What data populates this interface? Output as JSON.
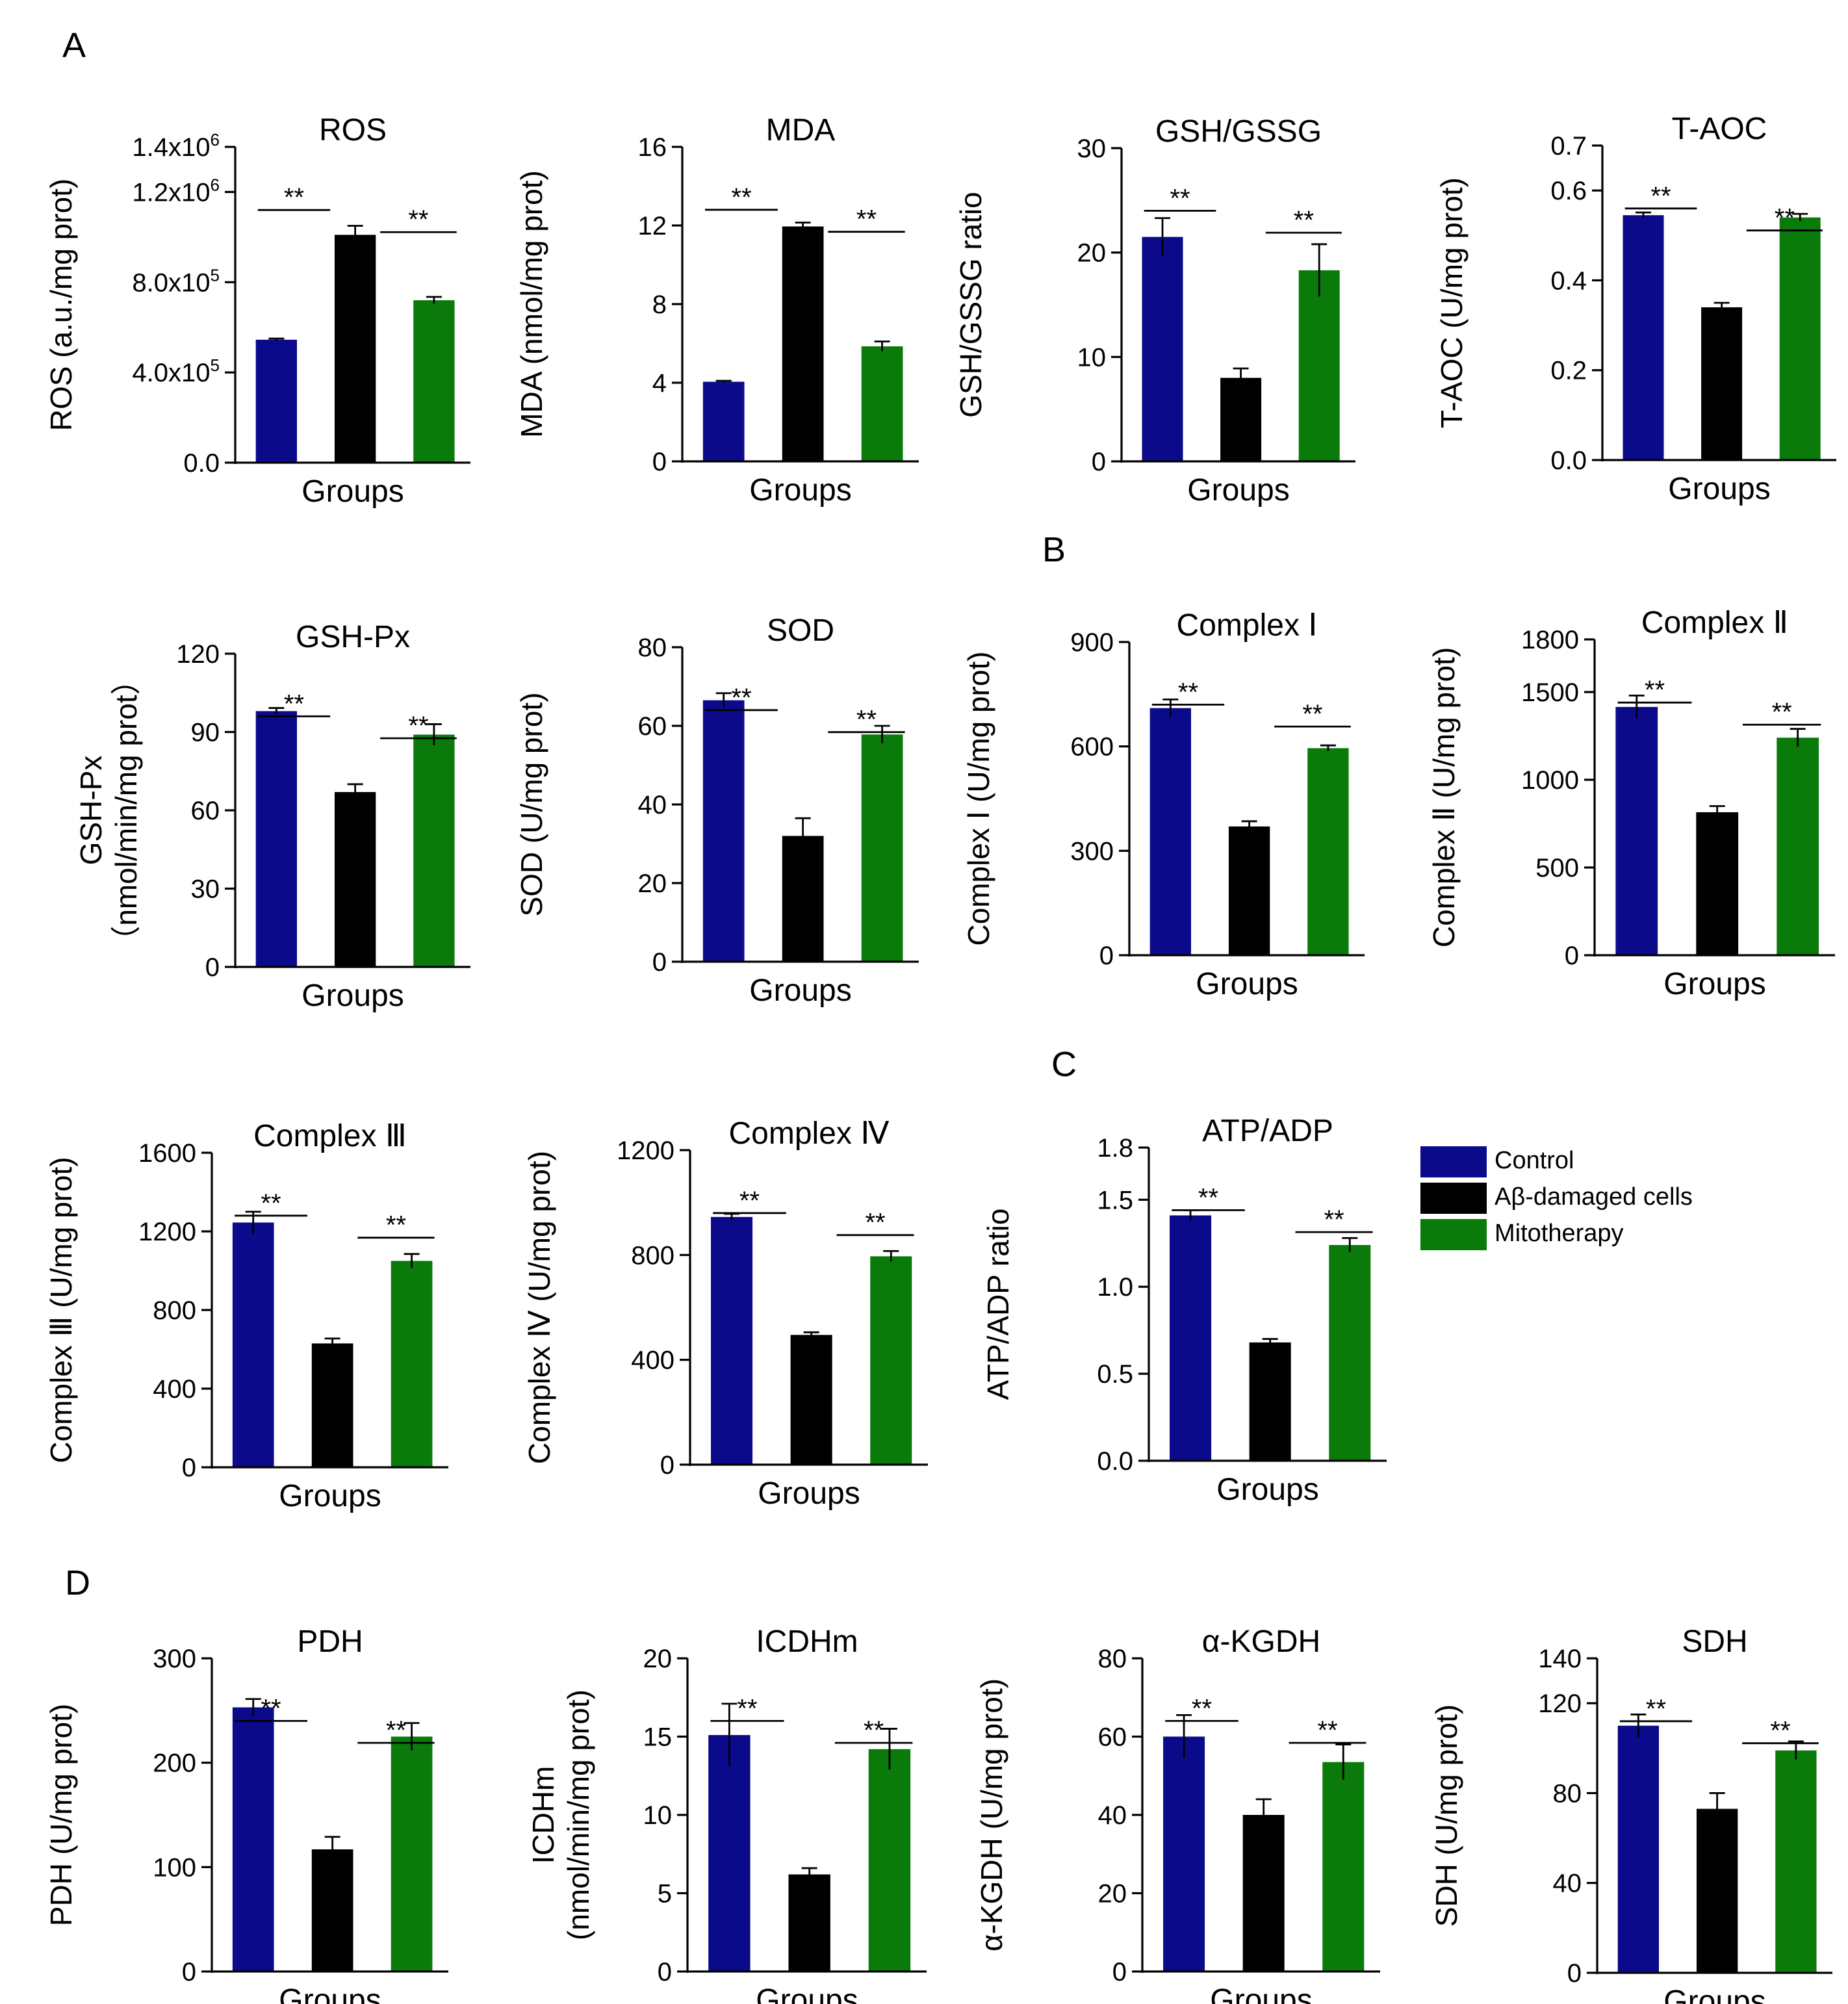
{
  "panel_labels": [
    "A",
    "B",
    "C",
    "D"
  ],
  "colors": {
    "control": "#0a0a8a",
    "damaged": "#000000",
    "mitotherapy": "#0a7a0a"
  },
  "legend": {
    "control": "Control",
    "damaged": "Aβ-damaged cells",
    "mitotherapy": "Mitotherapy"
  },
  "chart_data": [
    {
      "type": "bar",
      "title": "ROS",
      "ylabel": "ROS (a.u./mg prot)",
      "xlabel": "Groups",
      "ylim": [
        0,
        1400000
      ],
      "ticks": [
        {
          "v": 0,
          "b": "0.0"
        },
        {
          "v": 400000,
          "b": "4.0x10",
          "e": "5"
        },
        {
          "v": 800000,
          "b": "8.0x10",
          "e": "5"
        },
        {
          "v": 1200000,
          "b": "1.2x10",
          "e": "6"
        },
        {
          "v": 1400000,
          "b": "1.4x10",
          "e": "6"
        }
      ],
      "categories": [
        "Control",
        "Aβ-damaged cells",
        "Mitotherapy"
      ],
      "values": [
        545000,
        1010000,
        720000
      ],
      "errors": [
        5000,
        40000,
        15000
      ],
      "sig": [
        "**",
        "**"
      ]
    },
    {
      "type": "bar",
      "title": "MDA",
      "ylabel": "MDA (nmol/mg prot)",
      "xlabel": "Groups",
      "ylim": [
        0,
        16
      ],
      "ticks": [
        {
          "v": 0,
          "b": "0"
        },
        {
          "v": 4,
          "b": "4"
        },
        {
          "v": 8,
          "b": "8"
        },
        {
          "v": 12,
          "b": "12"
        },
        {
          "v": 16,
          "b": "16"
        }
      ],
      "categories": [
        "Control",
        "Aβ-damaged cells",
        "Mitotherapy"
      ],
      "values": [
        4.05,
        11.95,
        5.85
      ],
      "errors": [
        0.05,
        0.2,
        0.25
      ],
      "sig": [
        "**",
        "**"
      ]
    },
    {
      "type": "bar",
      "title": "GSH/GSSG",
      "ylabel": "GSH/GSSG ratio",
      "xlabel": "Groups",
      "ylim": [
        0,
        30
      ],
      "ticks": [
        {
          "v": 0,
          "b": "0"
        },
        {
          "v": 10,
          "b": "10"
        },
        {
          "v": 20,
          "b": "20"
        },
        {
          "v": 30,
          "b": "30"
        }
      ],
      "categories": [
        "Control",
        "Aβ-damaged cells",
        "Mitotherapy"
      ],
      "values": [
        21.5,
        8.0,
        18.3
      ],
      "errors": [
        1.8,
        0.9,
        2.5
      ],
      "sig": [
        "**",
        "**"
      ]
    },
    {
      "type": "bar",
      "title": "T-AOC",
      "ylabel": "T-AOC (U/mg prot)",
      "xlabel": "Groups",
      "ylim": [
        0,
        0.7
      ],
      "ticks": [
        {
          "v": 0,
          "b": "0.0"
        },
        {
          "v": 0.2,
          "b": "0.2"
        },
        {
          "v": 0.4,
          "b": "0.4"
        },
        {
          "v": 0.6,
          "b": "0.6"
        },
        {
          "v": 0.7,
          "b": "0.7"
        }
      ],
      "categories": [
        "Control",
        "Aβ-damaged cells",
        "Mitotherapy"
      ],
      "values": [
        0.545,
        0.34,
        0.54
      ],
      "errors": [
        0.006,
        0.01,
        0.008
      ],
      "sig": [
        "**",
        "**"
      ]
    },
    {
      "type": "bar",
      "title": "GSH-Px",
      "ylabel": "GSH-Px",
      "ylabel2": "（nmol/min/mg prot）",
      "xlabel": "Groups",
      "ylim": [
        0,
        120
      ],
      "ticks": [
        {
          "v": 0,
          "b": "0"
        },
        {
          "v": 30,
          "b": "30"
        },
        {
          "v": 60,
          "b": "60"
        },
        {
          "v": 90,
          "b": "90"
        },
        {
          "v": 120,
          "b": "120"
        }
      ],
      "categories": [
        "Control",
        "Aβ-damaged cells",
        "Mitotherapy"
      ],
      "values": [
        98,
        67,
        89
      ],
      "errors": [
        1.2,
        3,
        4
      ],
      "sig": [
        "**",
        "**"
      ]
    },
    {
      "type": "bar",
      "title": "SOD",
      "ylabel": "SOD (U/mg prot)",
      "xlabel": "Groups",
      "ylim": [
        0,
        80
      ],
      "ticks": [
        {
          "v": 0,
          "b": "0"
        },
        {
          "v": 20,
          "b": "20"
        },
        {
          "v": 40,
          "b": "40"
        },
        {
          "v": 60,
          "b": "60"
        },
        {
          "v": 80,
          "b": "80"
        }
      ],
      "categories": [
        "Control",
        "Aβ-damaged cells",
        "Mitotherapy"
      ],
      "values": [
        66.5,
        32,
        57.8
      ],
      "errors": [
        1.8,
        4.5,
        2.2
      ],
      "sig": [
        "**",
        "**"
      ]
    },
    {
      "type": "bar",
      "title": "Complex Ⅰ",
      "ylabel": "Complex Ⅰ (U/mg prot)",
      "xlabel": "Groups",
      "ylim": [
        0,
        900
      ],
      "ticks": [
        {
          "v": 0,
          "b": "0"
        },
        {
          "v": 300,
          "b": "300"
        },
        {
          "v": 600,
          "b": "600"
        },
        {
          "v": 900,
          "b": "900"
        }
      ],
      "categories": [
        "Control",
        "Aβ-damaged cells",
        "Mitotherapy"
      ],
      "values": [
        710,
        370,
        595
      ],
      "errors": [
        25,
        15,
        8
      ],
      "sig": [
        "**",
        "**"
      ]
    },
    {
      "type": "bar",
      "title": "Complex Ⅱ",
      "ylabel": "Complex Ⅱ (U/mg prot)",
      "xlabel": "Groups",
      "ylim": [
        0,
        1800
      ],
      "ticks": [
        {
          "v": 0,
          "b": "0"
        },
        {
          "v": 500,
          "b": "500"
        },
        {
          "v": 1000,
          "b": "1000"
        },
        {
          "v": 1500,
          "b": "1500"
        },
        {
          "v": 1800,
          "b": "1800"
        }
      ],
      "categories": [
        "Control",
        "Aβ-damaged cells",
        "Mitotherapy"
      ],
      "values": [
        1415,
        815,
        1240
      ],
      "errors": [
        65,
        35,
        50
      ],
      "sig": [
        "**",
        "**"
      ]
    },
    {
      "type": "bar",
      "title": "Complex Ⅲ",
      "ylabel": "Complex Ⅲ (U/mg prot)",
      "xlabel": "Groups",
      "ylim": [
        0,
        1600
      ],
      "ticks": [
        {
          "v": 0,
          "b": "0"
        },
        {
          "v": 400,
          "b": "400"
        },
        {
          "v": 800,
          "b": "800"
        },
        {
          "v": 1200,
          "b": "1200"
        },
        {
          "v": 1600,
          "b": "1600"
        }
      ],
      "categories": [
        "Control",
        "Aβ-damaged cells",
        "Mitotherapy"
      ],
      "values": [
        1245,
        630,
        1050
      ],
      "errors": [
        55,
        25,
        35
      ],
      "sig": [
        "**",
        "**"
      ]
    },
    {
      "type": "bar",
      "title": "Complex Ⅳ",
      "ylabel": "Complex Ⅳ (U/mg prot)",
      "xlabel": "Groups",
      "ylim": [
        0,
        1200
      ],
      "ticks": [
        {
          "v": 0,
          "b": "0"
        },
        {
          "v": 400,
          "b": "400"
        },
        {
          "v": 800,
          "b": "800"
        },
        {
          "v": 1200,
          "b": "1200"
        }
      ],
      "categories": [
        "Control",
        "Aβ-damaged cells",
        "Mitotherapy"
      ],
      "values": [
        945,
        495,
        795
      ],
      "errors": [
        12,
        10,
        20
      ],
      "sig": [
        "**",
        "**"
      ]
    },
    {
      "type": "bar",
      "title": "ATP/ADP",
      "ylabel": "ATP/ADP ratio",
      "xlabel": "Groups",
      "ylim": [
        0,
        1.8
      ],
      "ticks": [
        {
          "v": 0,
          "b": "0.0"
        },
        {
          "v": 0.5,
          "b": "0.5"
        },
        {
          "v": 1.0,
          "b": "1.0"
        },
        {
          "v": 1.5,
          "b": "1.5"
        },
        {
          "v": 1.8,
          "b": "1.8"
        }
      ],
      "categories": [
        "Control",
        "Aβ-damaged cells",
        "Mitotherapy"
      ],
      "values": [
        1.41,
        0.68,
        1.24
      ],
      "errors": [
        0.03,
        0.02,
        0.04
      ],
      "sig": [
        "**",
        "**"
      ]
    },
    {
      "type": "bar",
      "title": "PDH",
      "ylabel": "PDH (U/mg prot)",
      "xlabel": "Groups",
      "ylim": [
        0,
        300
      ],
      "ticks": [
        {
          "v": 0,
          "b": "0"
        },
        {
          "v": 100,
          "b": "100"
        },
        {
          "v": 200,
          "b": "200"
        },
        {
          "v": 300,
          "b": "300"
        }
      ],
      "categories": [
        "Control",
        "Aβ-damaged cells",
        "Mitotherapy"
      ],
      "values": [
        253,
        117,
        225
      ],
      "errors": [
        8,
        12,
        13
      ],
      "sig": [
        "**",
        "**"
      ]
    },
    {
      "type": "bar",
      "title": "ICDHm",
      "ylabel": "ICDHm",
      "ylabel2": "(nmol/min/mg prot)",
      "xlabel": "Groups",
      "ylim": [
        0,
        20
      ],
      "ticks": [
        {
          "v": 0,
          "b": "0"
        },
        {
          "v": 5,
          "b": "5"
        },
        {
          "v": 10,
          "b": "10"
        },
        {
          "v": 15,
          "b": "15"
        },
        {
          "v": 20,
          "b": "20"
        }
      ],
      "categories": [
        "Control",
        "Aβ-damaged cells",
        "Mitotherapy"
      ],
      "values": [
        15.1,
        6.2,
        14.2
      ],
      "errors": [
        2.0,
        0.4,
        1.3
      ],
      "sig": [
        "**",
        "**"
      ]
    },
    {
      "type": "bar",
      "title": "α-KGDH",
      "ylabel": "α-KGDH (U/mg prot)",
      "xlabel": "Groups",
      "ylim": [
        0,
        80
      ],
      "ticks": [
        {
          "v": 0,
          "b": "0"
        },
        {
          "v": 20,
          "b": "20"
        },
        {
          "v": 40,
          "b": "40"
        },
        {
          "v": 60,
          "b": "60"
        },
        {
          "v": 80,
          "b": "80"
        }
      ],
      "categories": [
        "Control",
        "Aβ-damaged cells",
        "Mitotherapy"
      ],
      "values": [
        60,
        40,
        53.5
      ],
      "errors": [
        5.5,
        4,
        4.5
      ],
      "sig": [
        "**",
        "**"
      ]
    },
    {
      "type": "bar",
      "title": "SDH",
      "ylabel": "SDH (U/mg prot)",
      "xlabel": "Groups",
      "ylim": [
        0,
        140
      ],
      "ticks": [
        {
          "v": 0,
          "b": "0"
        },
        {
          "v": 40,
          "b": "40"
        },
        {
          "v": 80,
          "b": "80"
        },
        {
          "v": 120,
          "b": "120"
        },
        {
          "v": 140,
          "b": "140"
        }
      ],
      "categories": [
        "Control",
        "Aβ-damaged cells",
        "Mitotherapy"
      ],
      "values": [
        110,
        73,
        99
      ],
      "errors": [
        5,
        7,
        4
      ],
      "sig": [
        "**",
        "**"
      ]
    }
  ]
}
